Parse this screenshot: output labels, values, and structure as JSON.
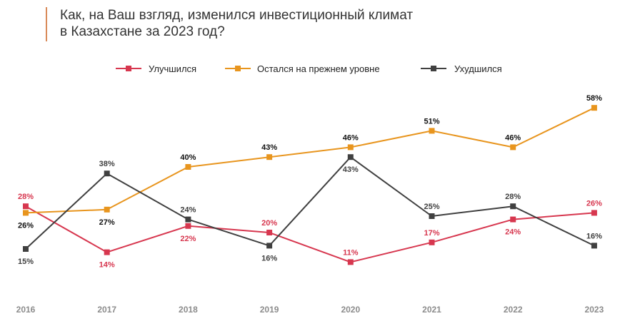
{
  "title_lines": [
    "Как, на Ваш взгляд, изменился инвестиционный климат",
    "в Казахстане за 2023 год?"
  ],
  "chart_data": {
    "type": "line",
    "x": [
      "2016",
      "2017",
      "2018",
      "2019",
      "2020",
      "2021",
      "2022",
      "2023"
    ],
    "series": [
      {
        "name": "Улучшился",
        "color": "#d7374f",
        "label_color": "#d7374f",
        "values": [
          28,
          14,
          22,
          20,
          11,
          17,
          24,
          26
        ],
        "labels": [
          "28%",
          "14%",
          "22%",
          "20%",
          "11%",
          "17%",
          "24%",
          "26%"
        ],
        "label_side": [
          "above",
          "below",
          "below",
          "above",
          "above",
          "above",
          "below",
          "above"
        ]
      },
      {
        "name": "Остался на прежнем уровне",
        "color": "#e8951e",
        "label_color": "#111111",
        "values": [
          26,
          27,
          40,
          43,
          46,
          51,
          46,
          58
        ],
        "labels": [
          "26%",
          "27%",
          "40%",
          "43%",
          "46%",
          "51%",
          "46%",
          "58%"
        ],
        "label_side": [
          "below",
          "below",
          "above",
          "above",
          "above",
          "above",
          "above",
          "above"
        ]
      },
      {
        "name": "Ухудшился",
        "color": "#404040",
        "label_color": "#404040",
        "values": [
          15,
          38,
          24,
          16,
          43,
          25,
          28,
          16
        ],
        "labels": [
          "15%",
          "38%",
          "24%",
          "16%",
          "43%",
          "25%",
          "28%",
          "16%"
        ],
        "label_side": [
          "below",
          "above",
          "above",
          "below",
          "below",
          "above",
          "above",
          "above"
        ]
      }
    ],
    "legend_position": "top-center",
    "grid": false
  }
}
